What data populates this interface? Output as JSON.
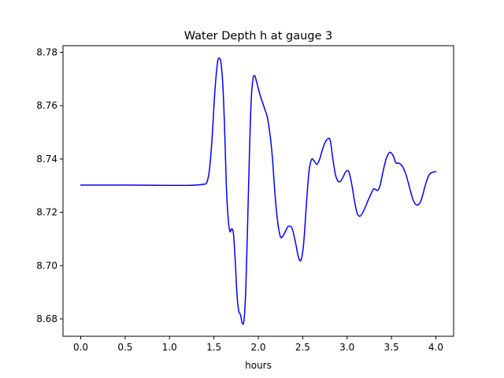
{
  "chart_data": {
    "type": "line",
    "title": "Water Depth h at gauge 3",
    "xlabel": "hours",
    "ylabel": "",
    "xlim": [
      -0.2,
      4.2
    ],
    "ylim": [
      8.6735,
      8.7825
    ],
    "xticks": [
      0.0,
      0.5,
      1.0,
      1.5,
      2.0,
      2.5,
      3.0,
      3.5,
      4.0
    ],
    "xtick_labels": [
      "0.0",
      "0.5",
      "1.0",
      "1.5",
      "2.0",
      "2.5",
      "3.0",
      "3.5",
      "4.0"
    ],
    "yticks": [
      8.68,
      8.7,
      8.72,
      8.74,
      8.76,
      8.78
    ],
    "ytick_labels": [
      "8.68",
      "8.70",
      "8.72",
      "8.74",
      "8.76",
      "8.78"
    ],
    "grid": false,
    "legend": "none",
    "series": [
      {
        "color": "#0000ff",
        "x": [
          0.0,
          0.5,
          1.0,
          1.2,
          1.3,
          1.38,
          1.42,
          1.45,
          1.48,
          1.51,
          1.54,
          1.56,
          1.58,
          1.6,
          1.62,
          1.64,
          1.66,
          1.68,
          1.7,
          1.72,
          1.74,
          1.76,
          1.78,
          1.8,
          1.82,
          1.84,
          1.86,
          1.88,
          1.9,
          1.92,
          1.94,
          1.96,
          1.98,
          2.0,
          2.02,
          2.05,
          2.08,
          2.1,
          2.12,
          2.14,
          2.16,
          2.19,
          2.22,
          2.25,
          2.28,
          2.31,
          2.34,
          2.38,
          2.42,
          2.45,
          2.48,
          2.51,
          2.54,
          2.57,
          2.6,
          2.63,
          2.66,
          2.69,
          2.72,
          2.75,
          2.78,
          2.81,
          2.84,
          2.87,
          2.9,
          2.93,
          2.96,
          2.99,
          3.02,
          3.05,
          3.08,
          3.11,
          3.14,
          3.17,
          3.2,
          3.23,
          3.26,
          3.3,
          3.34,
          3.37,
          3.4,
          3.44,
          3.48,
          3.52,
          3.55,
          3.58,
          3.62,
          3.66,
          3.7,
          3.74,
          3.78,
          3.82,
          3.85,
          3.88,
          3.92,
          3.96,
          4.0
        ],
        "y": [
          8.7302,
          8.7302,
          8.7301,
          8.7301,
          8.7302,
          8.7305,
          8.7312,
          8.736,
          8.748,
          8.765,
          8.776,
          8.7778,
          8.776,
          8.768,
          8.752,
          8.73,
          8.718,
          8.7128,
          8.7138,
          8.712,
          8.702,
          8.689,
          8.683,
          8.6815,
          8.6783,
          8.6798,
          8.692,
          8.716,
          8.742,
          8.762,
          8.77,
          8.7712,
          8.769,
          8.7665,
          8.764,
          8.761,
          8.758,
          8.756,
          8.752,
          8.747,
          8.74,
          8.726,
          8.716,
          8.7108,
          8.7112,
          8.7132,
          8.7148,
          8.714,
          8.7085,
          8.7035,
          8.702,
          8.708,
          8.722,
          8.735,
          8.7398,
          8.7392,
          8.738,
          8.7398,
          8.7432,
          8.746,
          8.7475,
          8.747,
          8.74,
          8.734,
          8.7316,
          8.7318,
          8.7336,
          8.7354,
          8.7352,
          8.731,
          8.725,
          8.72,
          8.7185,
          8.7195,
          8.7215,
          8.724,
          8.7262,
          8.7288,
          8.7282,
          8.7298,
          8.7345,
          8.74,
          8.7425,
          8.7412,
          8.7385,
          8.7385,
          8.7374,
          8.7345,
          8.7298,
          8.725,
          8.7228,
          8.7235,
          8.7262,
          8.73,
          8.7338,
          8.735,
          8.7352
        ]
      }
    ]
  }
}
